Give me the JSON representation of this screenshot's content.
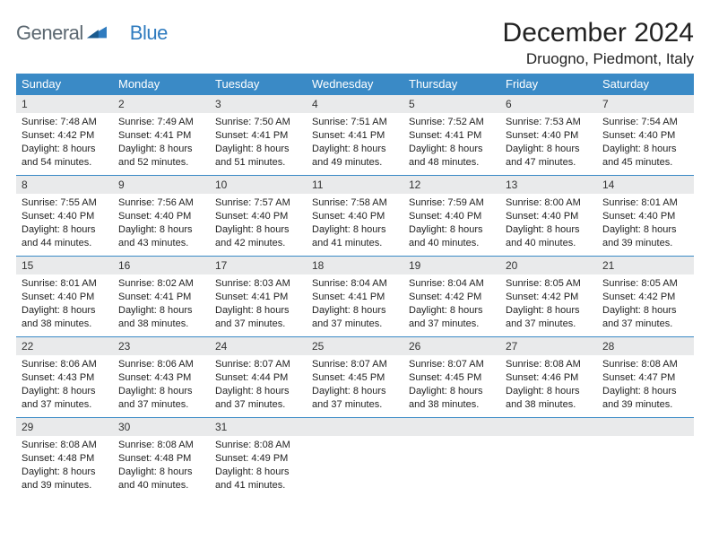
{
  "logo": {
    "text1": "General",
    "text2": "Blue"
  },
  "header": {
    "month_title": "December 2024",
    "location": "Druogno, Piedmont, Italy"
  },
  "colors": {
    "header_bg": "#3a8ac6",
    "header_text": "#ffffff",
    "daynum_bg": "#e9eaeb",
    "border": "#3a8ac6",
    "logo_gray": "#5b6770",
    "logo_blue": "#2f7bbf"
  },
  "weekdays": [
    "Sunday",
    "Monday",
    "Tuesday",
    "Wednesday",
    "Thursday",
    "Friday",
    "Saturday"
  ],
  "weeks": [
    [
      {
        "num": "1",
        "sunrise": "Sunrise: 7:48 AM",
        "sunset": "Sunset: 4:42 PM",
        "daylight": "Daylight: 8 hours and 54 minutes."
      },
      {
        "num": "2",
        "sunrise": "Sunrise: 7:49 AM",
        "sunset": "Sunset: 4:41 PM",
        "daylight": "Daylight: 8 hours and 52 minutes."
      },
      {
        "num": "3",
        "sunrise": "Sunrise: 7:50 AM",
        "sunset": "Sunset: 4:41 PM",
        "daylight": "Daylight: 8 hours and 51 minutes."
      },
      {
        "num": "4",
        "sunrise": "Sunrise: 7:51 AM",
        "sunset": "Sunset: 4:41 PM",
        "daylight": "Daylight: 8 hours and 49 minutes."
      },
      {
        "num": "5",
        "sunrise": "Sunrise: 7:52 AM",
        "sunset": "Sunset: 4:41 PM",
        "daylight": "Daylight: 8 hours and 48 minutes."
      },
      {
        "num": "6",
        "sunrise": "Sunrise: 7:53 AM",
        "sunset": "Sunset: 4:40 PM",
        "daylight": "Daylight: 8 hours and 47 minutes."
      },
      {
        "num": "7",
        "sunrise": "Sunrise: 7:54 AM",
        "sunset": "Sunset: 4:40 PM",
        "daylight": "Daylight: 8 hours and 45 minutes."
      }
    ],
    [
      {
        "num": "8",
        "sunrise": "Sunrise: 7:55 AM",
        "sunset": "Sunset: 4:40 PM",
        "daylight": "Daylight: 8 hours and 44 minutes."
      },
      {
        "num": "9",
        "sunrise": "Sunrise: 7:56 AM",
        "sunset": "Sunset: 4:40 PM",
        "daylight": "Daylight: 8 hours and 43 minutes."
      },
      {
        "num": "10",
        "sunrise": "Sunrise: 7:57 AM",
        "sunset": "Sunset: 4:40 PM",
        "daylight": "Daylight: 8 hours and 42 minutes."
      },
      {
        "num": "11",
        "sunrise": "Sunrise: 7:58 AM",
        "sunset": "Sunset: 4:40 PM",
        "daylight": "Daylight: 8 hours and 41 minutes."
      },
      {
        "num": "12",
        "sunrise": "Sunrise: 7:59 AM",
        "sunset": "Sunset: 4:40 PM",
        "daylight": "Daylight: 8 hours and 40 minutes."
      },
      {
        "num": "13",
        "sunrise": "Sunrise: 8:00 AM",
        "sunset": "Sunset: 4:40 PM",
        "daylight": "Daylight: 8 hours and 40 minutes."
      },
      {
        "num": "14",
        "sunrise": "Sunrise: 8:01 AM",
        "sunset": "Sunset: 4:40 PM",
        "daylight": "Daylight: 8 hours and 39 minutes."
      }
    ],
    [
      {
        "num": "15",
        "sunrise": "Sunrise: 8:01 AM",
        "sunset": "Sunset: 4:40 PM",
        "daylight": "Daylight: 8 hours and 38 minutes."
      },
      {
        "num": "16",
        "sunrise": "Sunrise: 8:02 AM",
        "sunset": "Sunset: 4:41 PM",
        "daylight": "Daylight: 8 hours and 38 minutes."
      },
      {
        "num": "17",
        "sunrise": "Sunrise: 8:03 AM",
        "sunset": "Sunset: 4:41 PM",
        "daylight": "Daylight: 8 hours and 37 minutes."
      },
      {
        "num": "18",
        "sunrise": "Sunrise: 8:04 AM",
        "sunset": "Sunset: 4:41 PM",
        "daylight": "Daylight: 8 hours and 37 minutes."
      },
      {
        "num": "19",
        "sunrise": "Sunrise: 8:04 AM",
        "sunset": "Sunset: 4:42 PM",
        "daylight": "Daylight: 8 hours and 37 minutes."
      },
      {
        "num": "20",
        "sunrise": "Sunrise: 8:05 AM",
        "sunset": "Sunset: 4:42 PM",
        "daylight": "Daylight: 8 hours and 37 minutes."
      },
      {
        "num": "21",
        "sunrise": "Sunrise: 8:05 AM",
        "sunset": "Sunset: 4:42 PM",
        "daylight": "Daylight: 8 hours and 37 minutes."
      }
    ],
    [
      {
        "num": "22",
        "sunrise": "Sunrise: 8:06 AM",
        "sunset": "Sunset: 4:43 PM",
        "daylight": "Daylight: 8 hours and 37 minutes."
      },
      {
        "num": "23",
        "sunrise": "Sunrise: 8:06 AM",
        "sunset": "Sunset: 4:43 PM",
        "daylight": "Daylight: 8 hours and 37 minutes."
      },
      {
        "num": "24",
        "sunrise": "Sunrise: 8:07 AM",
        "sunset": "Sunset: 4:44 PM",
        "daylight": "Daylight: 8 hours and 37 minutes."
      },
      {
        "num": "25",
        "sunrise": "Sunrise: 8:07 AM",
        "sunset": "Sunset: 4:45 PM",
        "daylight": "Daylight: 8 hours and 37 minutes."
      },
      {
        "num": "26",
        "sunrise": "Sunrise: 8:07 AM",
        "sunset": "Sunset: 4:45 PM",
        "daylight": "Daylight: 8 hours and 38 minutes."
      },
      {
        "num": "27",
        "sunrise": "Sunrise: 8:08 AM",
        "sunset": "Sunset: 4:46 PM",
        "daylight": "Daylight: 8 hours and 38 minutes."
      },
      {
        "num": "28",
        "sunrise": "Sunrise: 8:08 AM",
        "sunset": "Sunset: 4:47 PM",
        "daylight": "Daylight: 8 hours and 39 minutes."
      }
    ],
    [
      {
        "num": "29",
        "sunrise": "Sunrise: 8:08 AM",
        "sunset": "Sunset: 4:48 PM",
        "daylight": "Daylight: 8 hours and 39 minutes."
      },
      {
        "num": "30",
        "sunrise": "Sunrise: 8:08 AM",
        "sunset": "Sunset: 4:48 PM",
        "daylight": "Daylight: 8 hours and 40 minutes."
      },
      {
        "num": "31",
        "sunrise": "Sunrise: 8:08 AM",
        "sunset": "Sunset: 4:49 PM",
        "daylight": "Daylight: 8 hours and 41 minutes."
      },
      null,
      null,
      null,
      null
    ]
  ]
}
